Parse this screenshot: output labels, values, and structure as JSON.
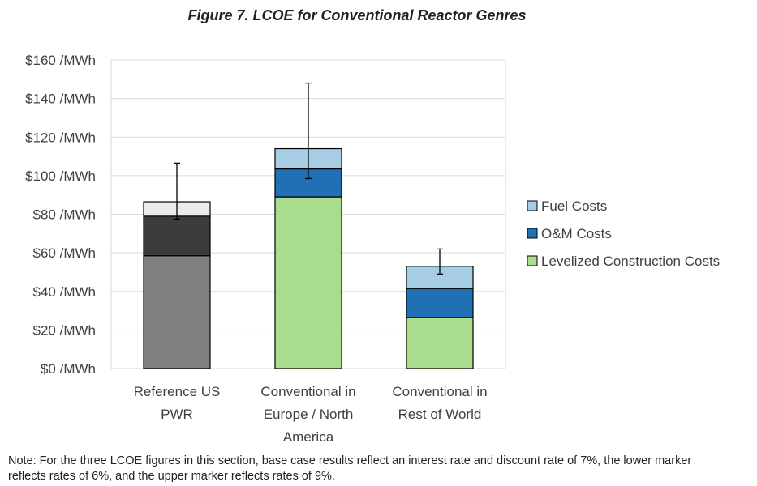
{
  "title": "Figure 7. LCOE for Conventional Reactor Genres",
  "note": "Note: For the three LCOE figures in this section, base case results reflect an interest rate and discount rate of 7%, the lower marker reflects rates of 6%, and the upper marker reflects rates of 9%.",
  "chart_data": {
    "type": "bar",
    "stacked": true,
    "title": "Figure 7. LCOE for Conventional Reactor Genres",
    "categories": [
      [
        "Reference US",
        "PWR"
      ],
      [
        "Conventional in",
        "Europe / North",
        "America"
      ],
      [
        "Conventional in",
        "Rest of World"
      ]
    ],
    "y_tick_labels": [
      "$0 /MWh",
      "$20 /MWh",
      "$40 /MWh",
      "$60 /MWh",
      "$80 /MWh",
      "$100 /MWh",
      "$120 /MWh",
      "$140 /MWh",
      "$160 /MWh"
    ],
    "ylim": [
      0,
      160
    ],
    "series": [
      {
        "name": "Levelized Construction Costs",
        "values": [
          58.5,
          89,
          26.5
        ]
      },
      {
        "name": "O&M Costs",
        "values": [
          20.5,
          14.5,
          15
        ]
      },
      {
        "name": "Fuel Costs",
        "values": [
          7.5,
          10.5,
          11.5
        ]
      }
    ],
    "error_bars": {
      "low": [
        77.5,
        98.5,
        49
      ],
      "high": [
        106.5,
        148,
        62
      ]
    },
    "colors": {
      "Levelized Construction Costs": "#A9DC8D",
      "O&M Costs": "#2170B5",
      "Fuel Costs": "#A6CDE3"
    },
    "reference_colors": {
      "Levelized Construction Costs": "#808080",
      "O&M Costs": "#3C3C3C",
      "Fuel Costs": "#EBEBEB"
    },
    "legend": {
      "position": "right",
      "entries": [
        "Fuel Costs",
        "O&M Costs",
        "Levelized Construction Costs"
      ]
    },
    "grid": true
  }
}
